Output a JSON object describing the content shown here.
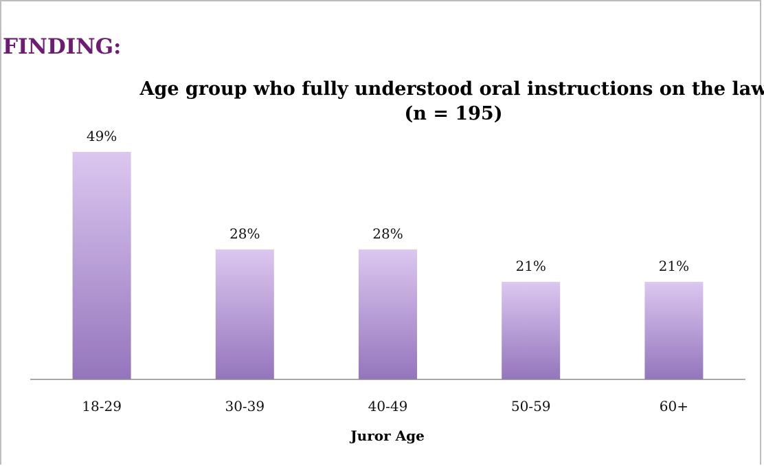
{
  "heading": "FINDING:",
  "colors": {
    "heading": "#6e1b74",
    "bar_top": "#dcc7f0",
    "bar_bottom": "#9475bc",
    "axis": "#8c8c8c"
  },
  "chart_data": {
    "type": "bar",
    "title": "Age group who fully understood oral instructions on the law (n = 195)",
    "xlabel": "Juror Age",
    "ylabel": "",
    "categories": [
      "18-29",
      "30-39",
      "40-49",
      "50-59",
      "60+"
    ],
    "values": [
      49,
      28,
      28,
      21,
      21
    ],
    "value_labels": [
      "49%",
      "28%",
      "28%",
      "21%",
      "21%"
    ],
    "ylim": [
      0,
      50
    ],
    "grid": false,
    "legend": "none"
  }
}
